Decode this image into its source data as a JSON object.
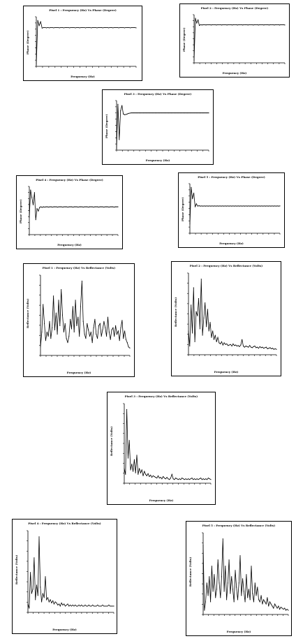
{
  "chart_data": [
    {
      "type": "line",
      "title": "Pixel 1 : Frequency (Hz) Vs Phase (Degree)",
      "xlabel": "Frequency (Hz)",
      "ylabel": "Phase (Degree)",
      "y": [
        8,
        180,
        160,
        175,
        150,
        152,
        152,
        151,
        152,
        151,
        152,
        152,
        151,
        152,
        152,
        152,
        151,
        152,
        152,
        151,
        152,
        152,
        152,
        151,
        152,
        152,
        152,
        151,
        152,
        152,
        151,
        152,
        152,
        152,
        151,
        152,
        152,
        152,
        151,
        152,
        152,
        152,
        151,
        152,
        152,
        152,
        151,
        152,
        152,
        152,
        151,
        152,
        152,
        151,
        152,
        152,
        152,
        151,
        152,
        152,
        152,
        151,
        152,
        152,
        152,
        151,
        152,
        152,
        152,
        151
      ]
    },
    {
      "type": "line",
      "title": "Pixel 2 : Frequency (Hz) Vs Phase (Degree)",
      "xlabel": "Frequency (Hz)",
      "ylabel": "Phase (Degree)",
      "y": [
        10,
        185,
        165,
        178,
        155,
        158,
        157,
        158,
        158,
        157,
        158,
        158,
        158,
        157,
        158,
        158,
        158,
        157,
        158,
        158,
        158,
        157,
        158,
        158,
        158,
        157,
        158,
        158,
        158,
        157,
        158,
        158,
        158,
        157,
        158,
        158,
        158,
        157,
        158,
        158,
        158,
        157,
        158,
        158,
        158,
        157,
        158,
        158,
        158,
        157,
        158,
        158,
        158,
        157,
        158,
        158,
        158,
        157,
        158,
        158,
        158,
        157,
        158,
        158,
        158,
        157,
        158,
        158,
        158,
        157
      ]
    },
    {
      "type": "line",
      "title": "Pixel 3 : Frequency (Hz) Vs Phase (Degree)",
      "xlabel": "Frequency (Hz)",
      "ylabel": "Phase (Degree)",
      "y": [
        5,
        175,
        40,
        150,
        170,
        138,
        135,
        136,
        138,
        140,
        141,
        142,
        142,
        142,
        142,
        142,
        142,
        142,
        142,
        142,
        142,
        142,
        142,
        142,
        142,
        142,
        142,
        142,
        142,
        142,
        142,
        142,
        142,
        142,
        142,
        142,
        142,
        142,
        142,
        142,
        142,
        142,
        142,
        142,
        142,
        142,
        142,
        142,
        142,
        142,
        142,
        142,
        142,
        142,
        142,
        142,
        142,
        142,
        142,
        142,
        142,
        142,
        142,
        142,
        142,
        142,
        142,
        142,
        142,
        142
      ]
    },
    {
      "type": "line",
      "title": "Pixel 4 : Frequency (Hz) Vs Phase (Degree)",
      "xlabel": "Frequency (Hz)",
      "ylabel": "Phase (Degree)",
      "y": [
        70,
        180,
        150,
        120,
        170,
        60,
        105,
        95,
        110,
        112,
        110,
        112,
        111,
        112,
        112,
        111,
        112,
        112,
        111,
        112,
        112,
        112,
        111,
        112,
        112,
        112,
        111,
        112,
        112,
        112,
        111,
        112,
        112,
        112,
        111,
        112,
        112,
        112,
        111,
        112,
        112,
        112,
        111,
        112,
        112,
        112,
        111,
        112,
        112,
        112,
        111,
        112,
        112,
        112,
        111,
        112,
        112,
        112,
        111,
        112,
        112,
        112,
        111,
        112,
        112,
        112,
        111,
        112,
        112,
        112
      ]
    },
    {
      "type": "line",
      "title": "Pixel 5 : Frequency (Hz) Vs Phase (Degree)",
      "xlabel": "Frequency (Hz)",
      "ylabel": "Phase (Degree)",
      "y": [
        40,
        200,
        150,
        175,
        115,
        128,
        118,
        120,
        118,
        119,
        118,
        119,
        118,
        119,
        118,
        119,
        118,
        119,
        118,
        119,
        118,
        119,
        118,
        119,
        118,
        119,
        118,
        119,
        118,
        119,
        118,
        119,
        118,
        119,
        118,
        119,
        118,
        119,
        118,
        119,
        118,
        119,
        118,
        119,
        118,
        119,
        118,
        119,
        118,
        119,
        118,
        119,
        118,
        119,
        118,
        119,
        118,
        119,
        118,
        119,
        118,
        119,
        118,
        119,
        118,
        119,
        118,
        119,
        118,
        119
      ]
    },
    {
      "type": "line",
      "title": "Pixel 1 : Frequency (Hz) Vs Reflectance (Volts)",
      "xlabel": "Frequency (Hz)",
      "ylabel": "Reflectance (Volts)",
      "y": [
        80,
        220,
        480,
        300,
        140,
        220,
        180,
        320,
        160,
        260,
        560,
        240,
        400,
        200,
        520,
        280,
        620,
        380,
        220,
        300,
        160,
        120,
        180,
        340,
        250,
        460,
        220,
        520,
        280,
        360,
        180,
        460,
        700,
        320,
        200,
        160,
        300,
        240,
        180,
        220,
        120,
        260,
        340,
        200,
        160,
        280,
        300,
        180,
        240,
        320,
        260,
        180,
        360,
        220,
        150,
        240,
        260,
        180,
        280,
        200,
        230,
        140,
        260,
        330,
        160,
        230,
        150,
        120,
        80,
        70
      ]
    },
    {
      "type": "line",
      "title": "Pixel 2 : Frequency (Hz) Vs Reflectance (Volts)",
      "xlabel": "Frequency (Hz)",
      "ylabel": "Reflectance (Volts)",
      "y": [
        220,
        80,
        460,
        200,
        620,
        120,
        400,
        360,
        520,
        240,
        700,
        180,
        340,
        480,
        260,
        420,
        220,
        300,
        160,
        220,
        140,
        180,
        120,
        160,
        110,
        100,
        120,
        90,
        110,
        95,
        100,
        85,
        90,
        95,
        80,
        100,
        85,
        90,
        80,
        85,
        75,
        90,
        140,
        80,
        70,
        80,
        75,
        70,
        85,
        70,
        65,
        75,
        80,
        65,
        70,
        60,
        75,
        65,
        70,
        60,
        65,
        70,
        55,
        60,
        65,
        55,
        60,
        50,
        55,
        50
      ]
    },
    {
      "type": "line",
      "title": "Pixel 3 : Frequency (Hz) Vs Reflectance (Volts)",
      "xlabel": "Frequency (Hz)",
      "ylabel": "Reflectance (Volts)",
      "y": [
        200,
        120,
        1000,
        340,
        580,
        180,
        260,
        160,
        320,
        140,
        380,
        120,
        200,
        140,
        180,
        100,
        160,
        120,
        100,
        130,
        90,
        110,
        80,
        100,
        90,
        80,
        70,
        100,
        70,
        80,
        60,
        90,
        70,
        60,
        80,
        60,
        50,
        70,
        120,
        60,
        50,
        70,
        60,
        50,
        60,
        50,
        70,
        60,
        50,
        60,
        50,
        60,
        50,
        60,
        70,
        50,
        60,
        50,
        60,
        50,
        60,
        70,
        50,
        60,
        50,
        60,
        50,
        70,
        60,
        50
      ]
    },
    {
      "type": "line",
      "title": "Pixel 4 : Frequency (Hz) Vs Reflectance (Volts)",
      "xlabel": "Frequency (Hz)",
      "ylabel": "Reflectance (Volts)",
      "y": [
        80,
        40,
        380,
        180,
        220,
        520,
        120,
        260,
        160,
        720,
        240,
        100,
        180,
        140,
        340,
        120,
        140,
        100,
        120,
        90,
        110,
        80,
        100,
        90,
        70,
        80,
        60,
        90,
        70,
        80,
        60,
        70,
        80,
        60,
        70,
        60,
        70,
        60,
        70,
        60,
        60,
        70,
        60,
        70,
        60,
        60,
        70,
        60,
        60,
        70,
        60,
        60,
        70,
        60,
        60,
        60,
        70,
        60,
        60,
        60,
        70,
        60,
        60,
        60,
        60,
        70,
        60,
        60,
        60,
        60
      ]
    },
    {
      "type": "line",
      "title": "Pixel 5 : Frequency (Hz) Vs Reflectance (Volts)",
      "xlabel": "Frequency (Hz)",
      "ylabel": "Reflectance (Volts)",
      "y": [
        660,
        40,
        120,
        300,
        180,
        360,
        120,
        460,
        220,
        380,
        160,
        240,
        520,
        300,
        160,
        360,
        720,
        220,
        460,
        140,
        300,
        520,
        200,
        360,
        240,
        120,
        420,
        260,
        140,
        300,
        560,
        180,
        340,
        220,
        120,
        380,
        160,
        240,
        140,
        460,
        200,
        120,
        300,
        180,
        260,
        140,
        120,
        180,
        100,
        140,
        120,
        100,
        160,
        80,
        120,
        100,
        80,
        60,
        100,
        80,
        60,
        80,
        50,
        70,
        60,
        50,
        60,
        40,
        50,
        40
      ]
    }
  ]
}
